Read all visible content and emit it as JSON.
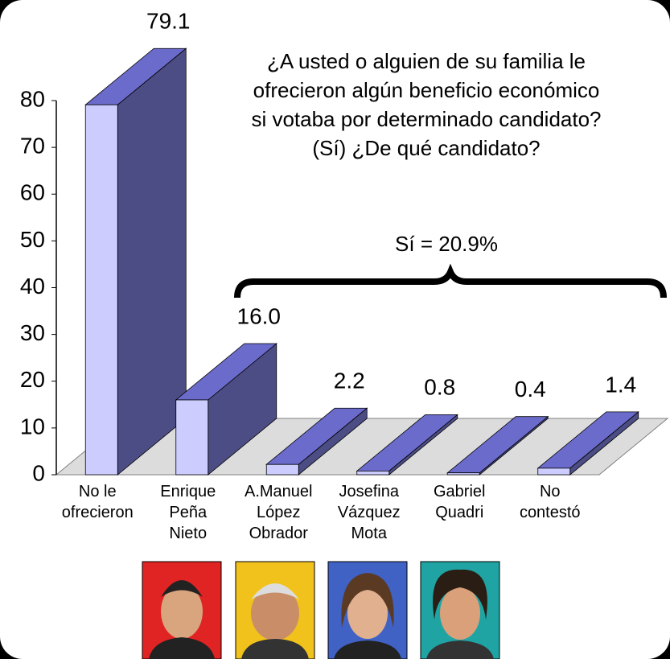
{
  "chart_data": {
    "type": "bar3d",
    "title": "¿A usted o alguien de su familia le\nofrecieron algún beneficio económico\nsi votaba por determinado candidato?\n(Sí) ¿De qué candidato?",
    "annotation": "Sí = 20.9%",
    "categories": [
      "No le\nofrecieron",
      "Enrique\nPeña\nNieto",
      "A.Manuel\nLópez\nObrador",
      "Josefina\nVázquez\nMota",
      "Gabriel\nQuadri",
      "No\ncontestó"
    ],
    "values": [
      79.1,
      16.0,
      2.2,
      0.8,
      0.4,
      1.4
    ],
    "value_labels": [
      "79.1",
      "16.0",
      "2.2",
      "0.8",
      "0.4",
      "1.4"
    ],
    "colors": {
      "front": "#ccccff",
      "top": "#6b6bcc",
      "side": "#4d4d85"
    },
    "ylim": [
      0,
      80
    ],
    "yticks": [
      0,
      10,
      20,
      30,
      40,
      50,
      60,
      70,
      80
    ],
    "grid": false
  }
}
